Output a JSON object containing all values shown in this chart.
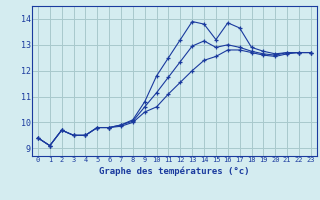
{
  "xlabel": "Graphe des températures (°c)",
  "bg_color": "#d4ecf0",
  "line_color": "#1a3a9e",
  "grid_color": "#a8c8cc",
  "xlim": [
    -0.5,
    23.5
  ],
  "ylim": [
    8.7,
    14.5
  ],
  "yticks": [
    9,
    10,
    11,
    12,
    13,
    14
  ],
  "xticks": [
    0,
    1,
    2,
    3,
    4,
    5,
    6,
    7,
    8,
    9,
    10,
    11,
    12,
    13,
    14,
    15,
    16,
    17,
    18,
    19,
    20,
    21,
    22,
    23
  ],
  "curve_main_x": [
    0,
    1,
    2,
    3,
    4,
    5,
    6,
    7,
    8,
    9,
    10,
    11,
    12,
    13,
    14,
    15,
    16,
    17,
    18,
    19,
    20,
    21,
    22,
    23
  ],
  "curve_main_y": [
    9.4,
    9.1,
    9.7,
    9.5,
    9.5,
    9.8,
    9.8,
    9.9,
    10.1,
    10.8,
    11.8,
    12.5,
    13.2,
    13.9,
    13.8,
    13.2,
    13.85,
    13.65,
    12.9,
    12.75,
    12.65,
    12.7,
    12.7,
    12.7
  ],
  "curve_mid_x": [
    0,
    1,
    2,
    3,
    4,
    5,
    6,
    7,
    8,
    9,
    10,
    11,
    12,
    13,
    14,
    15,
    16,
    17,
    18,
    19,
    20,
    21,
    22,
    23
  ],
  "curve_mid_y": [
    9.4,
    9.1,
    9.7,
    9.5,
    9.5,
    9.8,
    9.8,
    9.9,
    10.05,
    10.6,
    11.15,
    11.75,
    12.35,
    12.95,
    13.15,
    12.9,
    13.0,
    12.9,
    12.75,
    12.65,
    12.6,
    12.7,
    12.7,
    12.7
  ],
  "curve_low_x": [
    0,
    1,
    2,
    3,
    4,
    5,
    6,
    7,
    8,
    9,
    10,
    11,
    12,
    13,
    14,
    15,
    16,
    17,
    18,
    19,
    20,
    21,
    22,
    23
  ],
  "curve_low_y": [
    9.4,
    9.1,
    9.7,
    9.5,
    9.5,
    9.8,
    9.8,
    9.85,
    10.0,
    10.4,
    10.6,
    11.1,
    11.55,
    12.0,
    12.4,
    12.55,
    12.8,
    12.8,
    12.7,
    12.6,
    12.55,
    12.65,
    12.7,
    12.7
  ]
}
